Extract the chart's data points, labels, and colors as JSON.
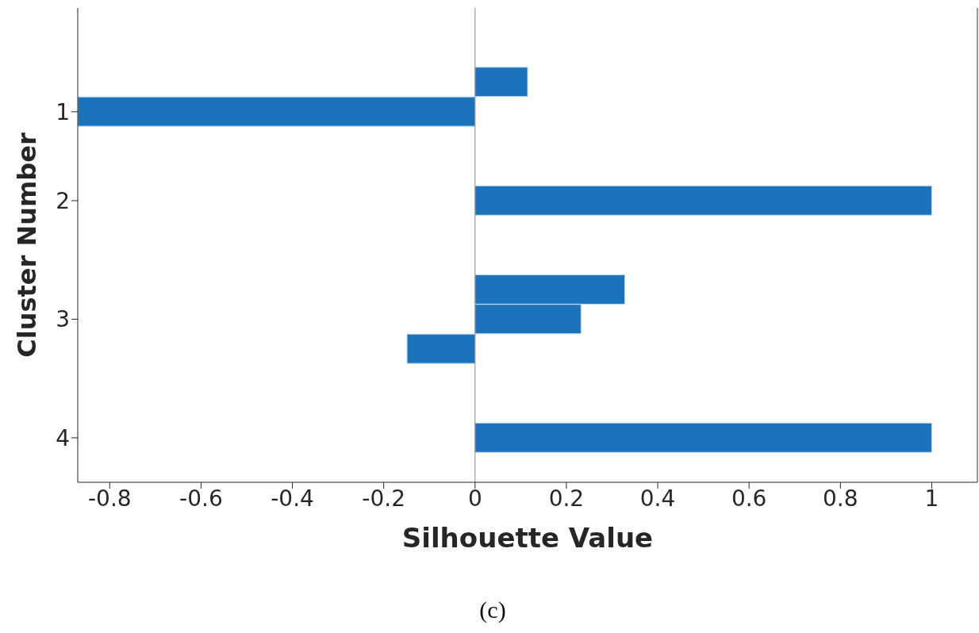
{
  "chart_data": {
    "type": "bar",
    "orientation": "horizontal",
    "xlabel": "Silhouette Value",
    "ylabel": "Cluster Number",
    "categories": [
      null,
      null,
      null,
      "1",
      null,
      null,
      "2",
      null,
      null,
      null,
      "3",
      null,
      null,
      null,
      "4",
      null
    ],
    "values": [
      null,
      null,
      0.115,
      -0.87,
      null,
      null,
      1,
      null,
      null,
      0.328,
      0.232,
      -0.149,
      null,
      null,
      1,
      null
    ],
    "color": "#1a73bb",
    "xlim": [
      -0.87,
      1.1
    ],
    "xticks": [
      -0.8,
      -0.6,
      -0.4,
      -0.2,
      0,
      0.2,
      0.4,
      0.6,
      0.8,
      1
    ],
    "ref_lines": [
      {
        "axis": "x",
        "value": 0,
        "label": null,
        "color": "#888888"
      }
    ],
    "grid": false,
    "legend": false,
    "annotations": [
      "(c)"
    ]
  }
}
